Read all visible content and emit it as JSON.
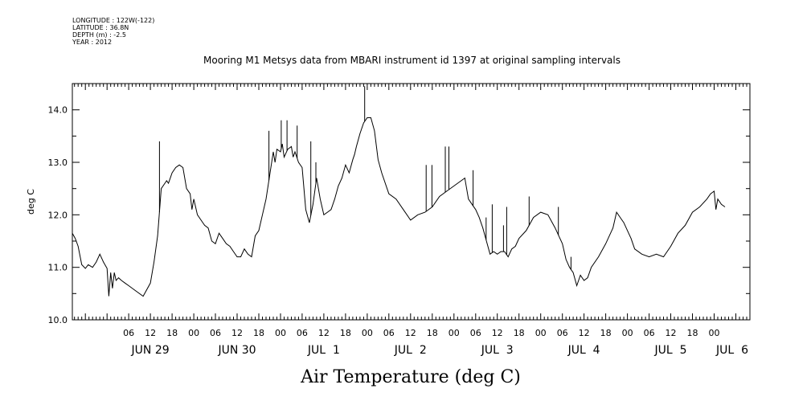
{
  "header": {
    "longitude": "LONGITUDE : 122W(-122)",
    "latitude": "LATITUDE : 36.8N",
    "depth": "DEPTH (m) : -2.5",
    "year": "YEAR : 2012"
  },
  "chart_data": {
    "type": "line",
    "title": "Mooring M1 Metsys data from MBARI instrument id 1397 at original sampling intervals",
    "xlabel": "Air Temperature (deg C)",
    "ylabel": "deg C",
    "ylim": [
      10.0,
      14.5
    ],
    "y_ticks": [
      10.0,
      11.0,
      12.0,
      13.0,
      14.0
    ],
    "y_tick_labels": [
      "10.0",
      "11.0",
      "12.0",
      "13.0",
      "14.0"
    ],
    "x_unit": "hours since 2012-06-29 00:00",
    "xlim": [
      -9.6,
      177.9
    ],
    "hour_ticks": [
      {
        "h": 6,
        "label": "06"
      },
      {
        "h": 12,
        "label": "12"
      },
      {
        "h": 18,
        "label": "18"
      },
      {
        "h": 24,
        "label": "00"
      },
      {
        "h": 30,
        "label": "06"
      },
      {
        "h": 36,
        "label": "12"
      },
      {
        "h": 42,
        "label": "18"
      },
      {
        "h": 48,
        "label": "00"
      },
      {
        "h": 54,
        "label": "06"
      },
      {
        "h": 60,
        "label": "12"
      },
      {
        "h": 66,
        "label": "18"
      },
      {
        "h": 72,
        "label": "00"
      },
      {
        "h": 78,
        "label": "06"
      },
      {
        "h": 84,
        "label": "12"
      },
      {
        "h": 90,
        "label": "18"
      },
      {
        "h": 96,
        "label": "00"
      },
      {
        "h": 102,
        "label": "06"
      },
      {
        "h": 108,
        "label": "12"
      },
      {
        "h": 114,
        "label": "18"
      },
      {
        "h": 120,
        "label": "00"
      },
      {
        "h": 126,
        "label": "06"
      },
      {
        "h": 132,
        "label": "12"
      },
      {
        "h": 138,
        "label": "18"
      },
      {
        "h": 144,
        "label": "00"
      },
      {
        "h": 150,
        "label": "06"
      },
      {
        "h": 156,
        "label": "12"
      },
      {
        "h": 162,
        "label": "18"
      },
      {
        "h": 168,
        "label": "00"
      }
    ],
    "day_labels": [
      {
        "h": 12,
        "label": "JUN 29"
      },
      {
        "h": 36,
        "label": "JUN 30"
      },
      {
        "h": 60,
        "label": "JUL  1"
      },
      {
        "h": 84,
        "label": "JUL  2"
      },
      {
        "h": 108,
        "label": "JUL  3"
      },
      {
        "h": 132,
        "label": "JUL  4"
      },
      {
        "h": 156,
        "label": "JUL  5"
      },
      {
        "h": 173,
        "label": "JUL  6"
      }
    ],
    "x": [
      -9.6,
      -8.8,
      -8.0,
      -7.0,
      -6.0,
      -5.2,
      -4.0,
      -3.0,
      -2.0,
      -1.0,
      0.0,
      0.5,
      1.0,
      1.5,
      2.0,
      2.5,
      3.2,
      4.0,
      5.0,
      6.0,
      8.0,
      10.0,
      12.0,
      13.0,
      14.0,
      15.0,
      16.0,
      16.5,
      17.0,
      18.0,
      19.0,
      20.0,
      21.0,
      22.0,
      23.0,
      23.5,
      24.0,
      25.0,
      26.0,
      27.0,
      28.0,
      29.0,
      30.0,
      31.0,
      32.0,
      33.0,
      34.0,
      35.0,
      36.0,
      37.0,
      38.0,
      39.0,
      40.0,
      41.0,
      42.0,
      43.0,
      44.0,
      45.0,
      46.0,
      46.5,
      47.0,
      48.0,
      48.5,
      49.0,
      50.0,
      51.0,
      51.5,
      52.0,
      53.0,
      54.0,
      55.0,
      56.0,
      57.0,
      58.0,
      59.0,
      60.0,
      61.0,
      62.0,
      63.0,
      64.0,
      65.0,
      66.0,
      67.0,
      68.0,
      68.5,
      69.0,
      70.0,
      71.0,
      72.0,
      73.0,
      74.0,
      75.0,
      76.0,
      78.0,
      80.0,
      82.0,
      84.0,
      86.0,
      88.0,
      90.0,
      92.0,
      94.0,
      96.0,
      97.0,
      98.0,
      99.0,
      100.0,
      101.0,
      102.0,
      103.0,
      104.0,
      105.0,
      106.0,
      107.0,
      108.0,
      109.0,
      110.0,
      111.0,
      112.0,
      113.0,
      114.0,
      116.0,
      118.0,
      120.0,
      122.0,
      124.0,
      126.0,
      127.0,
      128.0,
      129.0,
      130.0,
      131.0,
      132.0,
      133.0,
      134.0,
      136.0,
      138.0,
      140.0,
      141.0,
      142.0,
      143.0,
      144.0,
      145.0,
      146.0,
      148.0,
      150.0,
      152.0,
      154.0,
      156.0,
      158.0,
      160.0,
      162.0,
      164.0,
      166.0,
      167.0,
      168.0,
      168.5,
      169.0,
      170.0,
      171.0
    ],
    "values": [
      11.65,
      11.55,
      11.4,
      11.05,
      10.98,
      11.05,
      11.0,
      11.1,
      11.25,
      11.1,
      10.98,
      10.45,
      10.9,
      10.6,
      10.9,
      10.75,
      10.8,
      10.75,
      10.7,
      10.65,
      10.55,
      10.45,
      10.7,
      11.1,
      11.6,
      12.5,
      12.6,
      12.65,
      12.6,
      12.8,
      12.9,
      12.95,
      12.9,
      12.5,
      12.4,
      12.1,
      12.3,
      12.0,
      11.9,
      11.8,
      11.75,
      11.5,
      11.45,
      11.65,
      11.55,
      11.45,
      11.4,
      11.3,
      11.2,
      11.2,
      11.35,
      11.25,
      11.2,
      11.6,
      11.7,
      12.0,
      12.3,
      12.75,
      13.2,
      13.0,
      13.25,
      13.2,
      13.35,
      13.1,
      13.25,
      13.3,
      13.1,
      13.2,
      13.0,
      12.9,
      12.1,
      11.85,
      12.2,
      12.7,
      12.3,
      12.0,
      12.05,
      12.1,
      12.3,
      12.55,
      12.7,
      12.95,
      12.8,
      13.05,
      13.15,
      13.3,
      13.55,
      13.75,
      13.85,
      13.85,
      13.6,
      13.05,
      12.8,
      12.4,
      12.3,
      12.1,
      11.9,
      12.0,
      12.05,
      12.15,
      12.35,
      12.45,
      12.55,
      12.6,
      12.65,
      12.7,
      12.3,
      12.2,
      12.1,
      11.95,
      11.75,
      11.5,
      11.25,
      11.3,
      11.25,
      11.3,
      11.3,
      11.2,
      11.35,
      11.4,
      11.55,
      11.7,
      11.95,
      12.05,
      12.0,
      11.75,
      11.45,
      11.15,
      11.0,
      10.9,
      10.65,
      10.85,
      10.75,
      10.8,
      11.0,
      11.2,
      11.45,
      11.75,
      12.05,
      11.95,
      11.85,
      11.7,
      11.55,
      11.35,
      11.25,
      11.2,
      11.25,
      11.2,
      11.4,
      11.65,
      11.8,
      12.05,
      12.15,
      12.3,
      12.4,
      12.45,
      12.1,
      12.3,
      12.2,
      12.15
    ],
    "spikes": [
      {
        "x": 14.5,
        "y": 13.4
      },
      {
        "x": 44.8,
        "y": 13.6
      },
      {
        "x": 48.2,
        "y": 13.8
      },
      {
        "x": 49.8,
        "y": 13.8
      },
      {
        "x": 52.6,
        "y": 13.7
      },
      {
        "x": 56.4,
        "y": 13.4
      },
      {
        "x": 57.8,
        "y": 13.0
      },
      {
        "x": 71.3,
        "y": 14.45
      },
      {
        "x": 88.3,
        "y": 12.95
      },
      {
        "x": 89.9,
        "y": 12.95
      },
      {
        "x": 93.6,
        "y": 13.3
      },
      {
        "x": 94.6,
        "y": 13.3
      },
      {
        "x": 101.3,
        "y": 12.85
      },
      {
        "x": 104.9,
        "y": 11.95
      },
      {
        "x": 106.6,
        "y": 12.2
      },
      {
        "x": 109.7,
        "y": 11.8
      },
      {
        "x": 110.6,
        "y": 12.15
      },
      {
        "x": 116.8,
        "y": 12.35
      },
      {
        "x": 124.9,
        "y": 12.15
      },
      {
        "x": 128.4,
        "y": 11.2
      }
    ]
  }
}
